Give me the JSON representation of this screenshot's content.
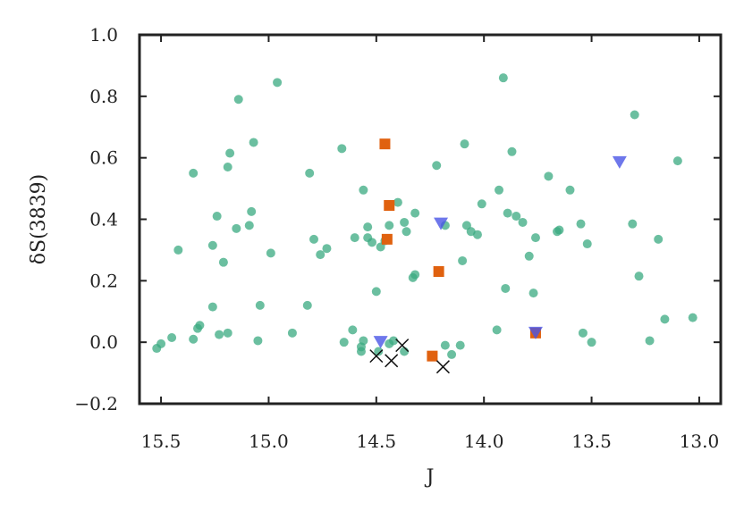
{
  "chart_data": {
    "type": "scatter",
    "xlabel": "J",
    "ylabel": "δS(3839)",
    "xlim": [
      15.6,
      12.9
    ],
    "ylim": [
      -0.2,
      1.0
    ],
    "x_inverted": true,
    "xticks": [
      15.5,
      15.0,
      14.5,
      14.0,
      13.5,
      13.0
    ],
    "xtick_labels": [
      "15.5",
      "15.0",
      "14.5",
      "14.0",
      "13.5",
      "13.0"
    ],
    "yticks": [
      -0.2,
      0.0,
      0.2,
      0.4,
      0.6,
      0.8,
      1.0
    ],
    "ytick_labels": [
      "−0.2",
      "0.0",
      "0.2",
      "0.4",
      "0.6",
      "0.8",
      "1.0"
    ],
    "grid": false,
    "series": [
      {
        "marker": "circle",
        "color": "#3aaa80",
        "points": [
          [
            15.52,
            -0.02
          ],
          [
            15.5,
            -0.005
          ],
          [
            15.45,
            0.015
          ],
          [
            15.42,
            0.3
          ],
          [
            15.35,
            0.01
          ],
          [
            15.35,
            0.55
          ],
          [
            15.33,
            0.045
          ],
          [
            15.32,
            0.055
          ],
          [
            15.26,
            0.315
          ],
          [
            15.26,
            0.115
          ],
          [
            15.24,
            0.41
          ],
          [
            15.23,
            0.025
          ],
          [
            15.21,
            0.26
          ],
          [
            15.19,
            0.57
          ],
          [
            15.19,
            0.03
          ],
          [
            15.18,
            0.615
          ],
          [
            15.15,
            0.37
          ],
          [
            15.14,
            0.79
          ],
          [
            15.09,
            0.38
          ],
          [
            15.08,
            0.425
          ],
          [
            15.07,
            0.65
          ],
          [
            15.05,
            0.005
          ],
          [
            15.04,
            0.12
          ],
          [
            14.99,
            0.29
          ],
          [
            14.96,
            0.845
          ],
          [
            14.89,
            0.03
          ],
          [
            14.82,
            0.12
          ],
          [
            14.81,
            0.55
          ],
          [
            14.79,
            0.335
          ],
          [
            14.76,
            0.285
          ],
          [
            14.73,
            0.305
          ],
          [
            14.66,
            0.63
          ],
          [
            14.65,
            0.0
          ],
          [
            14.61,
            0.04
          ],
          [
            14.6,
            0.34
          ],
          [
            14.57,
            -0.03
          ],
          [
            14.57,
            -0.015
          ],
          [
            14.56,
            0.495
          ],
          [
            14.56,
            0.005
          ],
          [
            14.54,
            0.375
          ],
          [
            14.54,
            0.34
          ],
          [
            14.52,
            0.325
          ],
          [
            14.5,
            0.165
          ],
          [
            14.48,
            0.31
          ],
          [
            14.46,
            0.33
          ],
          [
            14.44,
            0.38
          ],
          [
            14.42,
            0.005
          ],
          [
            14.4,
            0.455
          ],
          [
            14.37,
            0.39
          ],
          [
            14.36,
            0.36
          ],
          [
            14.33,
            0.21
          ],
          [
            14.32,
            0.42
          ],
          [
            14.32,
            0.22
          ],
          [
            14.22,
            0.575
          ],
          [
            14.18,
            0.38
          ],
          [
            14.1,
            0.265
          ],
          [
            14.09,
            0.645
          ],
          [
            14.08,
            0.38
          ],
          [
            14.06,
            0.36
          ],
          [
            14.03,
            0.35
          ],
          [
            14.01,
            0.45
          ],
          [
            13.94,
            0.04
          ],
          [
            13.93,
            0.495
          ],
          [
            13.91,
            0.86
          ],
          [
            13.9,
            0.175
          ],
          [
            13.89,
            0.42
          ],
          [
            13.87,
            0.62
          ],
          [
            13.85,
            0.41
          ],
          [
            13.82,
            0.39
          ],
          [
            13.79,
            0.28
          ],
          [
            13.77,
            0.16
          ],
          [
            13.76,
            0.34
          ],
          [
            13.7,
            0.54
          ],
          [
            13.66,
            0.36
          ],
          [
            13.65,
            0.365
          ],
          [
            13.6,
            0.495
          ],
          [
            13.55,
            0.385
          ],
          [
            13.54,
            0.03
          ],
          [
            13.52,
            0.32
          ],
          [
            13.5,
            0.0
          ],
          [
            13.31,
            0.385
          ],
          [
            13.3,
            0.74
          ],
          [
            13.28,
            0.215
          ],
          [
            13.23,
            0.005
          ],
          [
            13.19,
            0.335
          ],
          [
            13.16,
            0.075
          ],
          [
            13.1,
            0.59
          ],
          [
            13.03,
            0.08
          ],
          [
            14.49,
            -0.03
          ],
          [
            14.44,
            -0.005
          ],
          [
            14.37,
            -0.03
          ],
          [
            14.18,
            -0.01
          ],
          [
            14.15,
            -0.04
          ],
          [
            14.11,
            -0.01
          ]
        ]
      },
      {
        "marker": "square",
        "color": "#e0610f",
        "points": [
          [
            14.46,
            0.645
          ],
          [
            14.44,
            0.445
          ],
          [
            14.45,
            0.335
          ],
          [
            14.21,
            0.23
          ],
          [
            14.24,
            -0.045
          ],
          [
            13.76,
            0.03
          ]
        ]
      },
      {
        "marker": "triangle-down",
        "color": "#4a55e6",
        "points": [
          [
            14.48,
            0.0
          ],
          [
            14.2,
            0.385
          ],
          [
            13.37,
            0.585
          ],
          [
            13.76,
            0.03
          ]
        ]
      },
      {
        "marker": "x",
        "color": "#111111",
        "points": [
          [
            14.5,
            -0.045
          ],
          [
            14.43,
            -0.06
          ],
          [
            14.38,
            -0.01
          ],
          [
            14.19,
            -0.08
          ]
        ]
      }
    ]
  }
}
